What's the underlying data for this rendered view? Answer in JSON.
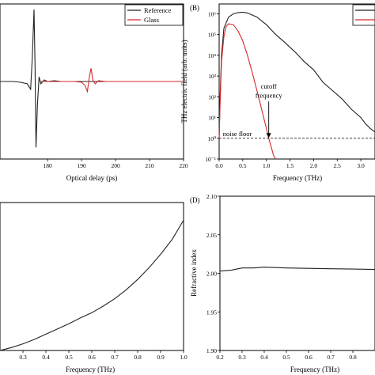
{
  "chart_data": [
    {
      "panel": "A",
      "type": "line",
      "title": "",
      "xlabel": "Optical delay (ps)",
      "ylabel": "",
      "xlim": [
        166,
        220
      ],
      "ylim": [
        -1.0,
        1.0
      ],
      "xticks": [
        180,
        190,
        200,
        210,
        220
      ],
      "legend": {
        "position": "top-right",
        "entries": [
          "Reference",
          "Glass"
        ]
      },
      "series": [
        {
          "name": "Reference",
          "color": "#222222",
          "x": [
            166,
            170,
            172,
            174,
            175,
            175.5,
            176,
            176.3,
            176.6,
            177,
            177.5,
            178,
            179,
            180,
            182,
            184,
            186,
            188,
            190,
            195,
            200,
            210,
            220
          ],
          "y": [
            0.0,
            0.0,
            -0.01,
            -0.03,
            -0.1,
            0.3,
            0.93,
            0.2,
            -0.85,
            -0.3,
            0.06,
            -0.03,
            0.02,
            0.0,
            0.01,
            0.0,
            0.0,
            0.0,
            0.0,
            0.0,
            0.0,
            0.0,
            0.0
          ]
        },
        {
          "name": "Glass",
          "color": "#d62728",
          "x": [
            178,
            185,
            188,
            190,
            191,
            191.7,
            192.3,
            192.8,
            193.3,
            194,
            195,
            197,
            200,
            210,
            220
          ],
          "y": [
            0.0,
            0.0,
            0.0,
            -0.01,
            -0.05,
            -0.13,
            0.06,
            0.17,
            0.02,
            -0.03,
            0.01,
            0.0,
            0.0,
            0.0,
            0.0
          ]
        }
      ]
    },
    {
      "panel": "B",
      "panel_label": "(B)",
      "type": "line",
      "title": "",
      "xlabel": "Frequency (THz)",
      "ylabel": "THz electric field (arb. units)",
      "xlim": [
        0,
        3.3
      ],
      "ylim": [
        0.1,
        3000000
      ],
      "yscale": "log",
      "xticks": [
        0.0,
        0.5,
        1.0,
        1.5,
        2.0,
        2.5,
        3.0
      ],
      "xtick_labels": [
        "0.0",
        "0.5",
        "1.0",
        "1.5",
        "2.0",
        "2.5",
        "3.0"
      ],
      "yticks": [
        0.1,
        1,
        10,
        100,
        1000,
        10000,
        100000,
        1000000
      ],
      "ytick_labels": [
        "10⁻¹",
        "10⁰",
        "10¹",
        "10²",
        "10³",
        "10⁴",
        "10⁵",
        "10⁶"
      ],
      "noise_floor": 1,
      "annotations": [
        {
          "text": "noise floor",
          "x": 0.08,
          "y": 1.3
        },
        {
          "text": "cutoff",
          "x": 1.05,
          "y": 250
        },
        {
          "text": "frequency",
          "x": 1.05,
          "y": 90
        }
      ],
      "series": [
        {
          "name": "Reference",
          "color": "#222222",
          "x": [
            0.0,
            0.02,
            0.05,
            0.1,
            0.2,
            0.3,
            0.4,
            0.5,
            0.6,
            0.8,
            1.0,
            1.2,
            1.4,
            1.6,
            1.8,
            2.0,
            2.2,
            2.4,
            2.6,
            2.8,
            3.0,
            3.1,
            3.2,
            3.3
          ],
          "y": [
            1,
            100,
            10000,
            200000,
            700000,
            1000000,
            1150000,
            1200000,
            1100000,
            700000,
            300000,
            100000,
            40000,
            15000,
            5000,
            2000,
            500,
            200,
            80,
            25,
            10,
            5,
            3,
            2
          ]
        },
        {
          "name": "Glass",
          "color": "#d62728",
          "x": [
            0.0,
            0.02,
            0.05,
            0.1,
            0.15,
            0.2,
            0.3,
            0.4,
            0.5,
            0.6,
            0.7,
            0.8,
            0.9,
            1.0,
            1.05,
            1.1,
            1.15,
            1.2
          ],
          "y": [
            1,
            50,
            5000,
            80000,
            250000,
            330000,
            300000,
            150000,
            50000,
            10000,
            1500,
            200,
            25,
            3,
            1,
            0.4,
            0.15,
            0.1
          ]
        }
      ]
    },
    {
      "panel": "C",
      "type": "line",
      "title": "",
      "xlabel": "Frequency (THz)",
      "ylabel": "",
      "xlim": [
        0.2,
        1.0
      ],
      "ylim": [
        0,
        1
      ],
      "xticks": [
        0.3,
        0.4,
        0.5,
        0.6,
        0.7,
        0.8,
        0.9,
        1.0
      ],
      "xtick_labels": [
        "0.3",
        "0.4",
        "0.5",
        "0.6",
        "0.7",
        "0.8",
        "0.9",
        "1.0"
      ],
      "series": [
        {
          "name": "",
          "color": "#222222",
          "x": [
            0.2,
            0.25,
            0.3,
            0.35,
            0.4,
            0.45,
            0.5,
            0.55,
            0.6,
            0.65,
            0.7,
            0.75,
            0.8,
            0.85,
            0.9,
            0.95,
            1.0
          ],
          "y": [
            0.0,
            0.02,
            0.045,
            0.075,
            0.11,
            0.145,
            0.18,
            0.22,
            0.255,
            0.3,
            0.35,
            0.41,
            0.48,
            0.56,
            0.65,
            0.75,
            0.88
          ]
        }
      ]
    },
    {
      "panel": "D",
      "panel_label": "(D)",
      "type": "line",
      "title": "",
      "xlabel": "Frequency (THz)",
      "ylabel": "Refractive index",
      "xlim": [
        0.2,
        0.9
      ],
      "ylim": [
        1.9,
        2.1
      ],
      "xticks": [
        0.2,
        0.3,
        0.4,
        0.5,
        0.6,
        0.7,
        0.8
      ],
      "xtick_labels": [
        "0.2",
        "0.3",
        "0.4",
        "0.5",
        "0.6",
        "0.7",
        "0.8"
      ],
      "yticks": [
        1.9,
        1.95,
        2.0,
        2.05,
        2.1
      ],
      "ytick_labels": [
        "1.90",
        "1.95",
        "2.00",
        "2.05",
        "2.10"
      ],
      "series": [
        {
          "name": "",
          "color": "#222222",
          "x": [
            0.2,
            0.25,
            0.3,
            0.35,
            0.4,
            0.5,
            0.6,
            0.7,
            0.8,
            0.9
          ],
          "y": [
            2.003,
            2.004,
            2.007,
            2.007,
            2.008,
            2.007,
            2.0065,
            2.006,
            2.0055,
            2.005
          ]
        }
      ]
    }
  ]
}
